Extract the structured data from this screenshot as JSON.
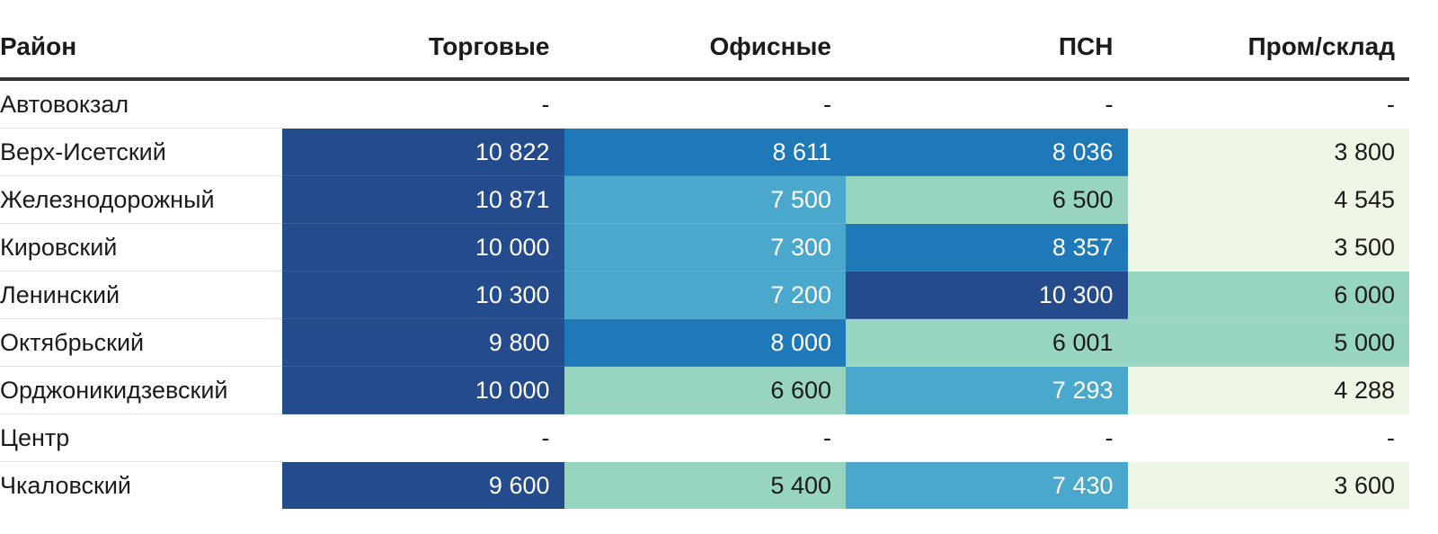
{
  "chart_data": {
    "type": "table",
    "columns": [
      "Район",
      "Торговые",
      "Офисные",
      "ПСН",
      "Пром/склад"
    ],
    "rows": [
      {
        "name": "Автовокзал",
        "values": [
          "-",
          "-",
          "-",
          "-"
        ]
      },
      {
        "name": "Верх-Исетский",
        "values": [
          "10 822",
          "8 611",
          "8 036",
          "3 800"
        ]
      },
      {
        "name": "Железнодорожный",
        "values": [
          "10 871",
          "7 500",
          "6 500",
          "4 545"
        ]
      },
      {
        "name": "Кировский",
        "values": [
          "10 000",
          "7 300",
          "8 357",
          "3 500"
        ]
      },
      {
        "name": "Ленинский",
        "values": [
          "10 300",
          "7 200",
          "10 300",
          "6 000"
        ]
      },
      {
        "name": "Октябрьский",
        "values": [
          "9 800",
          "8 000",
          "6 001",
          "5 000"
        ]
      },
      {
        "name": "Орджоникидзевский",
        "values": [
          "10 000",
          "6 600",
          "7 293",
          "4 288"
        ]
      },
      {
        "name": "Центр",
        "values": [
          "-",
          "-",
          "-",
          "-"
        ]
      },
      {
        "name": "Чкаловский",
        "values": [
          "9 600",
          "5 400",
          "7 430",
          "3 600"
        ]
      }
    ]
  },
  "colors": {
    "header_rule": "#333333",
    "row_divider": "#e3e3e3",
    "text_dark": "#1b1b1b",
    "text_light": "#ffffff",
    "scale": [
      {
        "max": 4999,
        "color": "#eef7e6",
        "text": "dark"
      },
      {
        "max": 6999,
        "color": "#98d5c0",
        "text": "dark"
      },
      {
        "max": 7999,
        "color": "#4aa8cc",
        "text": "light"
      },
      {
        "max": 9499,
        "color": "#1f78b8",
        "text": "light"
      },
      {
        "max": 99999,
        "color": "#244b8b",
        "text": "light"
      }
    ]
  }
}
